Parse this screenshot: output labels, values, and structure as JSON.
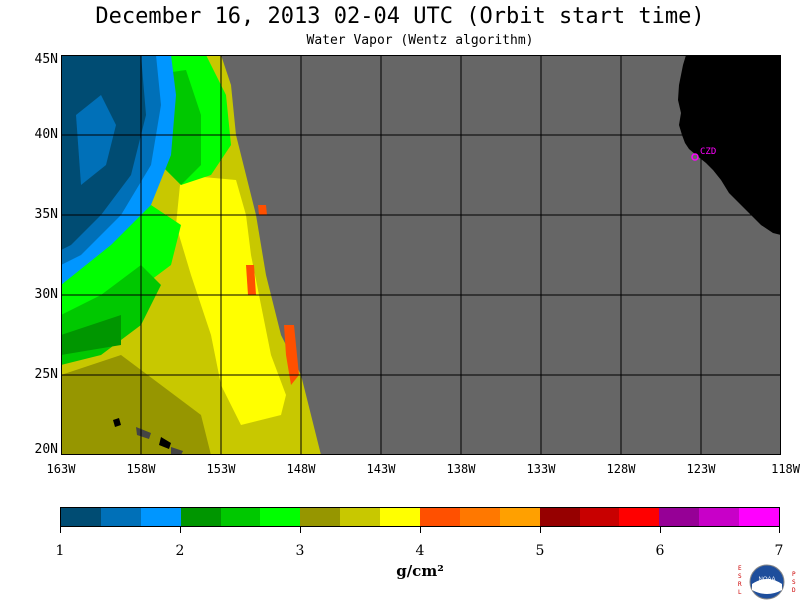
{
  "header": {
    "title": "December 16, 2013  02-04 UTC  (Orbit start time)",
    "subtitle": "Water Vapor (Wentz algorithm)"
  },
  "map": {
    "lat_labels": [
      "45N",
      "40N",
      "35N",
      "30N",
      "25N",
      "20N"
    ],
    "lon_labels": [
      "163W",
      "158W",
      "153W",
      "148W",
      "143W",
      "138W",
      "133W",
      "128W",
      "123W",
      "118W"
    ],
    "marker_label": "CZD",
    "colors": {
      "no_data": "#666666",
      "land": "#000000",
      "marker": "#ff00ff",
      "grid": "#000000"
    }
  },
  "colorbar": {
    "unit": "g/cm²",
    "tick_labels": [
      "1",
      "2",
      "3",
      "4",
      "5",
      "6",
      "7"
    ],
    "colors": [
      "#004c73",
      "#0070b8",
      "#0096ff",
      "#009600",
      "#00c800",
      "#00ff00",
      "#969600",
      "#c8c800",
      "#ffff00",
      "#ff5000",
      "#ff7800",
      "#ffa000",
      "#960000",
      "#c80000",
      "#ff0000",
      "#960096",
      "#c800c8",
      "#ff00ff"
    ]
  },
  "logo": {
    "name": "noaa-logo",
    "text_left": "ESRL",
    "text_right": "PSD"
  }
}
